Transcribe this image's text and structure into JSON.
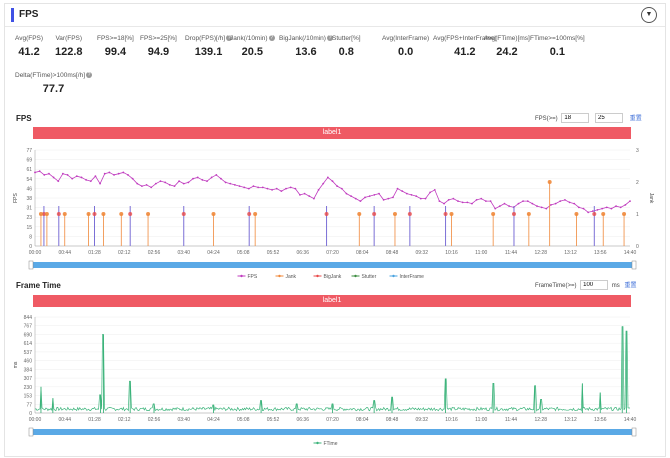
{
  "page": {
    "title": "FPS",
    "collapse_icon": "chevron-down-icon"
  },
  "stats": [
    {
      "label": "Avg(FPS)",
      "value": "41.2",
      "help": false
    },
    {
      "label": "Var(FPS)",
      "value": "122.8",
      "help": false
    },
    {
      "label": "FPS>=18[%]",
      "value": "99.4",
      "help": false
    },
    {
      "label": "FPS>=25[%]",
      "value": "94.9",
      "help": false
    },
    {
      "label": "Drop(FPS)[/h]",
      "value": "139.1",
      "help": true
    },
    {
      "label": "Jank(/10min)",
      "value": "20.5",
      "help": true
    },
    {
      "label": "BigJank(/10min)",
      "value": "13.6",
      "help": true
    },
    {
      "label": "Stutter[%]",
      "value": "0.8",
      "help": false
    },
    {
      "label": "Avg(InterFrame)",
      "value": "0.0",
      "help": false
    },
    {
      "label": "Avg(FPS+InterFrame)",
      "value": "41.2",
      "help": false
    },
    {
      "label": "Avg(FTime)[ms]",
      "value": "24.2",
      "help": false
    },
    {
      "label": "FTime>=100ms[%]",
      "value": "0.1",
      "help": false
    },
    {
      "label": "Delta(FTime)>100ms[/h]",
      "value": "77.7",
      "help": true
    }
  ],
  "fps_chart": {
    "section_title": "FPS",
    "threshold_label": "FPS(>=)",
    "threshold_1": "18",
    "threshold_2": "25",
    "link": "重置",
    "band_label": "label1",
    "ylabel": "FPS",
    "y2label": "Jank"
  },
  "ftime_chart": {
    "section_title": "Frame Time",
    "threshold_label": "FrameTime(>=)",
    "threshold_value": "100",
    "unit": "ms",
    "link": "重置",
    "band_label": "label1",
    "ylabel": "ms"
  },
  "chart_data": [
    {
      "type": "line",
      "title": "FPS",
      "x_ticks": [
        "00:00",
        "00:44",
        "01:28",
        "02:12",
        "02:56",
        "03:40",
        "04:24",
        "05:08",
        "05:52",
        "06:36",
        "07:20",
        "08:04",
        "08:48",
        "09:32",
        "10:16",
        "11:00",
        "11:44",
        "12:28",
        "13:12",
        "13:56",
        "14:40"
      ],
      "y_ticks": [
        "0",
        "8",
        "15",
        "23",
        "31",
        "38",
        "46",
        "54",
        "61",
        "69",
        "77"
      ],
      "ylim": [
        0,
        77
      ],
      "y2_ticks": [
        "0",
        "1",
        "2",
        "3"
      ],
      "y2lim": [
        0,
        3
      ],
      "legend": [
        "FPS",
        "Jank",
        "BigJank",
        "Stutter",
        "InterFrame"
      ],
      "series": [
        {
          "name": "FPS",
          "color": "#c03cbf",
          "values": [
            59,
            60,
            57,
            58,
            55,
            52,
            58,
            57,
            54,
            56,
            55,
            53,
            52,
            56,
            50,
            58,
            59,
            57,
            58,
            59,
            57,
            54,
            50,
            48,
            49,
            47,
            50,
            52,
            51,
            49,
            48,
            52,
            50,
            51,
            54,
            55,
            53,
            52,
            55,
            57,
            54,
            51,
            50,
            49,
            48,
            47,
            46,
            48,
            47,
            47,
            46,
            45,
            46,
            44,
            46,
            47,
            46,
            41,
            42,
            40,
            38,
            45,
            50,
            55,
            52,
            48,
            46,
            42,
            40,
            38,
            36,
            39,
            40,
            41,
            42,
            37,
            38,
            39,
            46,
            44,
            42,
            41,
            40,
            38,
            38,
            43,
            45,
            36,
            34,
            37,
            38,
            36,
            35,
            35,
            34,
            37,
            38,
            36,
            36,
            30,
            32,
            34,
            32,
            31,
            34,
            36,
            36,
            34,
            32,
            31,
            30,
            33,
            34,
            36,
            37,
            35,
            34,
            31,
            30,
            27,
            28,
            29,
            30,
            31,
            30,
            32,
            31,
            33,
            36
          ]
        },
        {
          "name": "Jank",
          "color": "#f0883a",
          "positions": [
            0.01,
            0.02,
            0.05,
            0.09,
            0.115,
            0.145,
            0.19,
            0.3,
            0.37,
            0.545,
            0.605,
            0.7,
            0.77,
            0.83,
            0.865,
            0.91,
            0.955,
            0.99
          ],
          "values": [
            1,
            1,
            1,
            1,
            1,
            1,
            1,
            1,
            1,
            1,
            1,
            1,
            1,
            1,
            2,
            1,
            1,
            1
          ]
        },
        {
          "name": "BigJank",
          "color": "#e84848",
          "positions": [
            0.015,
            0.04,
            0.1,
            0.16,
            0.25,
            0.36,
            0.49,
            0.57,
            0.63,
            0.69,
            0.805,
            0.94
          ],
          "values": [
            1,
            1,
            1,
            1,
            1,
            1,
            1,
            1,
            1,
            1,
            1,
            1
          ]
        },
        {
          "name": "Stutter",
          "color": "#3d8c40",
          "values": []
        },
        {
          "name": "InterFrame",
          "color": "#4aa3e0",
          "values": []
        }
      ]
    },
    {
      "type": "line",
      "title": "Frame Time",
      "x_ticks": [
        "00:00",
        "00:44",
        "01:28",
        "02:12",
        "02:56",
        "03:40",
        "04:24",
        "05:08",
        "05:52",
        "06:36",
        "07:20",
        "08:04",
        "08:48",
        "09:32",
        "10:16",
        "11:00",
        "11:44",
        "12:28",
        "13:12",
        "13:56",
        "14:40"
      ],
      "y_ticks": [
        "0",
        "77",
        "153",
        "230",
        "307",
        "384",
        "460",
        "537",
        "614",
        "690",
        "767",
        "844"
      ],
      "ylim": [
        0,
        844
      ],
      "legend": [
        "FTime"
      ],
      "series": [
        {
          "name": "FTime",
          "color": "#3bb37a",
          "baseline": 20,
          "spikes": [
            [
              0.01,
              230
            ],
            [
              0.03,
              130
            ],
            [
              0.11,
              160
            ],
            [
              0.115,
              690
            ],
            [
              0.16,
              280
            ],
            [
              0.2,
              80
            ],
            [
              0.3,
              70
            ],
            [
              0.38,
              110
            ],
            [
              0.44,
              80
            ],
            [
              0.5,
              80
            ],
            [
              0.57,
              110
            ],
            [
              0.6,
              140
            ],
            [
              0.69,
              300
            ],
            [
              0.77,
              260
            ],
            [
              0.84,
              240
            ],
            [
              0.85,
              120
            ],
            [
              0.92,
              260
            ],
            [
              0.95,
              180
            ],
            [
              0.987,
              760
            ],
            [
              0.994,
              720
            ]
          ]
        }
      ]
    }
  ]
}
